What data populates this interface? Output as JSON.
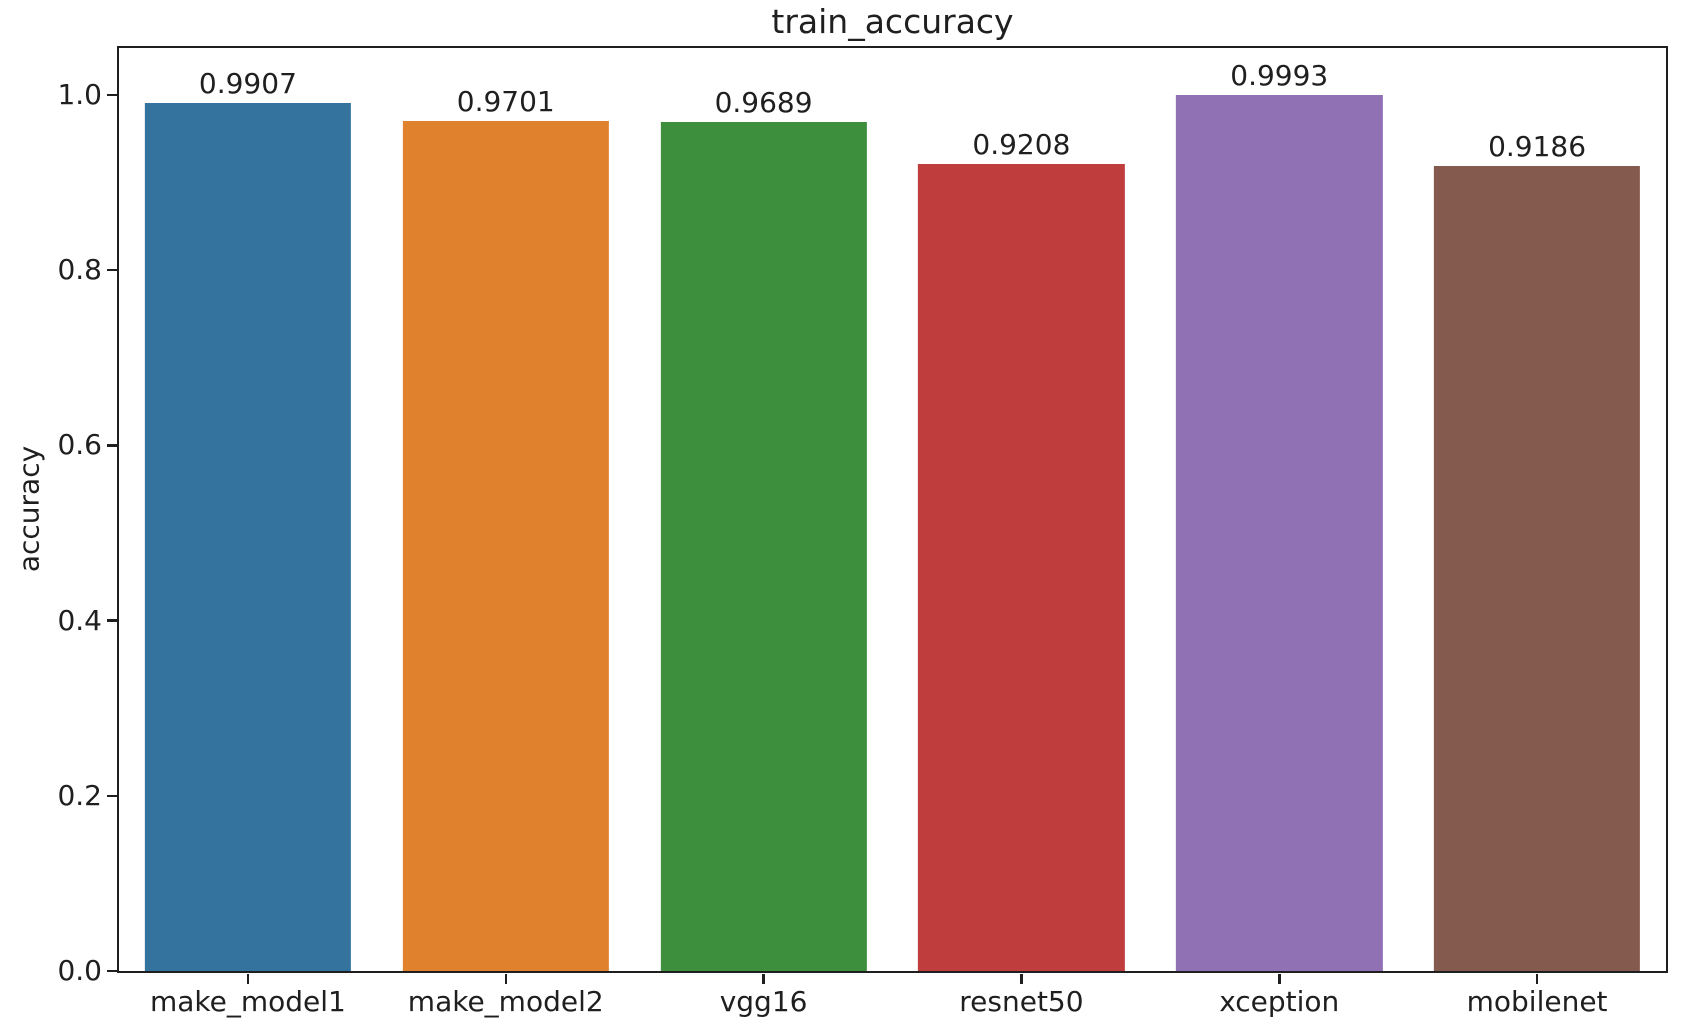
{
  "chart_data": {
    "type": "bar",
    "title": "train_accuracy",
    "xlabel": "",
    "ylabel": "accuracy",
    "categories": [
      "make_model1",
      "make_model2",
      "vgg16",
      "resnet50",
      "xception",
      "mobilenet"
    ],
    "values": [
      0.9907,
      0.9701,
      0.9689,
      0.9208,
      0.9993,
      0.9186
    ],
    "value_labels": [
      "0.9907",
      "0.9701",
      "0.9689",
      "0.9208",
      "0.9993",
      "0.9186"
    ],
    "bar_colors": [
      "#33739e",
      "#e0812d",
      "#3d8f3d",
      "#c03d3e",
      "#9071b4",
      "#84594e"
    ],
    "yticks": [
      "0.0",
      "0.2",
      "0.4",
      "0.6",
      "0.8",
      "1.0"
    ],
    "ylim": [
      0,
      1.0534
    ],
    "bar_width_fraction": 0.8,
    "grid": false,
    "legend": null,
    "text_color": "#1f1f1f",
    "axis_color": "#1f1f1f",
    "background": "#ffffff"
  }
}
